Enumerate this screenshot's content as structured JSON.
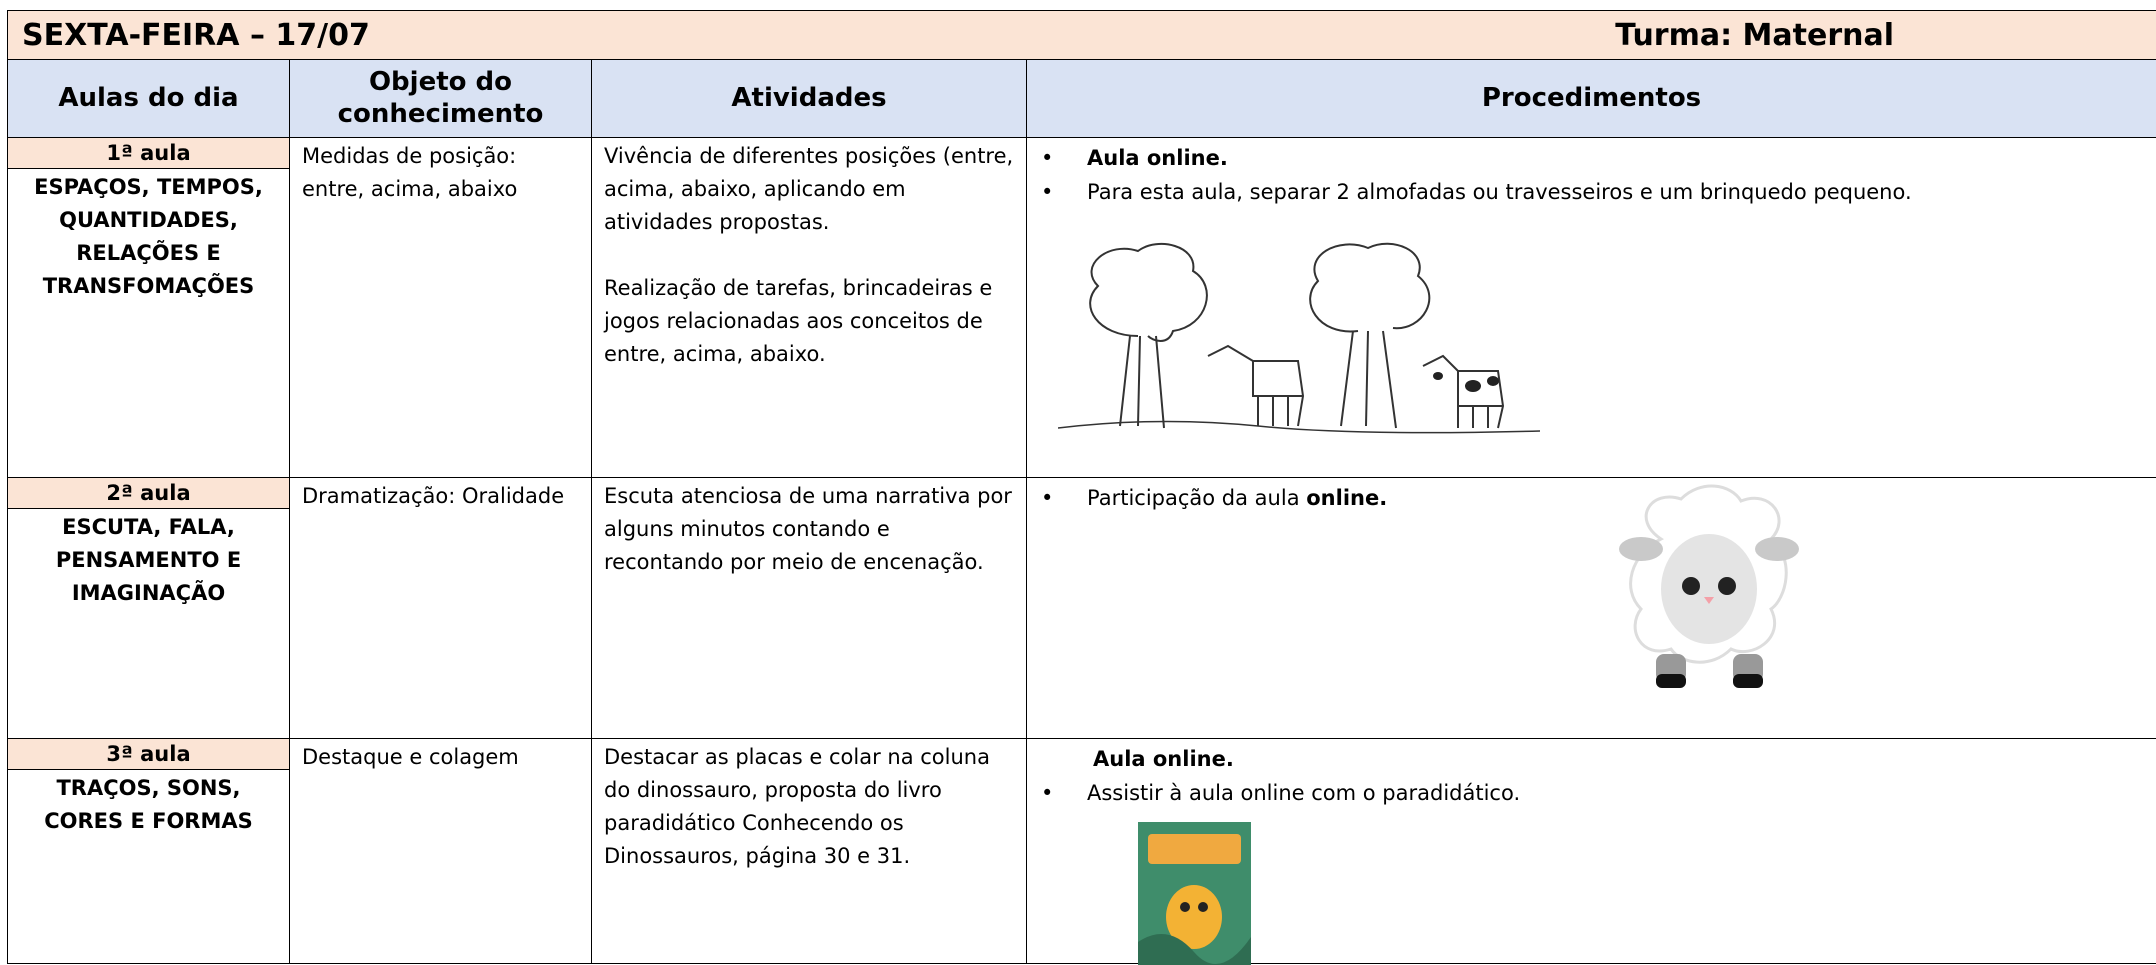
{
  "header": {
    "title": "SEXTA-FEIRA – 17/07",
    "class": "Turma: Maternal"
  },
  "table": {
    "columns": [
      "Aulas do dia",
      "Objeto do conhecimento",
      "Atividades",
      "Procedimentos"
    ],
    "rows": [
      {
        "lesson": "1ª aula",
        "area": "ESPAÇOS, TEMPOS, QUANTIDADES, RELAÇÕES E TRANSFOMAÇÕES",
        "objeto": "Medidas de posição: entre, acima, abaixo",
        "atividades": [
          "Vivência de diferentes posições (entre, acima, abaixo, aplicando em atividades propostas.",
          "Realização de tarefas, brincadeiras e jogos relacionadas aos conceitos de entre, acima, abaixo."
        ],
        "procedimentos": [
          {
            "bold": "Aula online.",
            "bullet": true
          },
          {
            "text": "Para esta aula, separar 2 almofadas ou travesseiros e um brinquedo pequeno.",
            "bullet": true
          }
        ]
      },
      {
        "lesson": "2ª aula",
        "area": "ESCUTA, FALA, PENSAMENTO E IMAGINAÇÃO",
        "objeto": "Dramatização: Oralidade",
        "atividades": [
          "Escuta atenciosa de uma narrativa por alguns minutos contando e recontando por meio de encenação."
        ],
        "procedimentos": [
          {
            "text": "Participação da aula ",
            "bold": "online.",
            "bullet": true
          }
        ]
      },
      {
        "lesson": "3ª aula",
        "area": "TRAÇOS, SONS, CORES E FORMAS",
        "objeto": "Destaque e colagem",
        "atividades": [
          " Destacar as placas e colar na coluna do dinossauro, proposta do livro paradidático Conhecendo os  Dinossauros, página 30 e 31."
        ],
        "procedimentos": [
          {
            "bold": "Aula online.",
            "bullet": false
          },
          {
            "text": "Assistir à aula online com o paradidático.",
            "bullet": true
          }
        ]
      }
    ]
  }
}
